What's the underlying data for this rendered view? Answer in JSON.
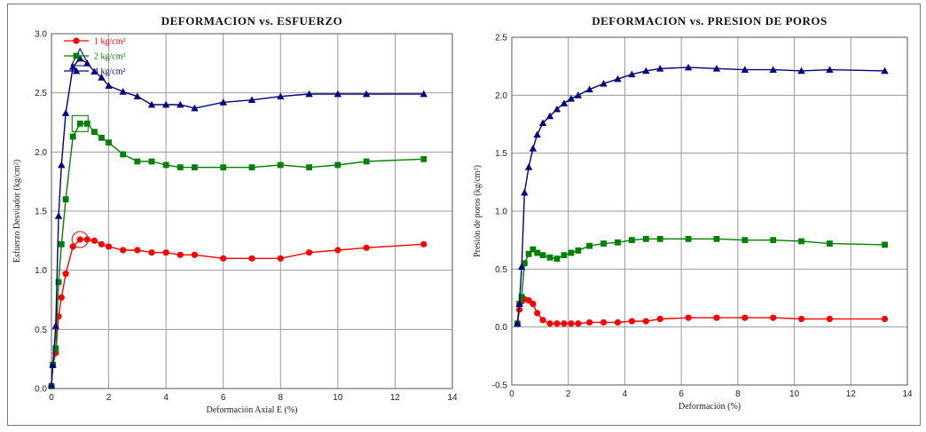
{
  "chart_data": [
    {
      "type": "line",
      "title": "DEFORMACION    vs.    ESFUERZO",
      "xlabel": "Deformación Axial E (%)",
      "ylabel": "Esfuerzo Desviador (kg/cm²)",
      "xlim": [
        0,
        14
      ],
      "ylim": [
        0,
        3.0
      ],
      "xticks": [
        0,
        2,
        4,
        6,
        8,
        10,
        12,
        14
      ],
      "xtick_labels": [
        "0",
        "2",
        "4",
        "6",
        "8",
        "10",
        "12",
        "14"
      ],
      "yticks": [
        0,
        0.5,
        1.0,
        1.5,
        2.0,
        2.5,
        3.0
      ],
      "ytick_labels": [
        "0.0",
        "0.5",
        "1.0",
        "1.5",
        "2.0",
        "2.5",
        "3.0"
      ],
      "grid": true,
      "legend_position": "top-left",
      "series": [
        {
          "name": "1 kg/cm²",
          "color": "#ff0000",
          "marker": "circle",
          "x": [
            0.0,
            0.05,
            0.15,
            0.25,
            0.35,
            0.5,
            0.75,
            1.0,
            1.25,
            1.5,
            1.75,
            2.0,
            2.5,
            3.0,
            3.5,
            4.0,
            4.5,
            5.0,
            6.0,
            7.0,
            8.0,
            9.0,
            10.0,
            11.0,
            13.0
          ],
          "y": [
            0.02,
            0.2,
            0.3,
            0.61,
            0.77,
            0.97,
            1.2,
            1.26,
            1.26,
            1.25,
            1.22,
            1.2,
            1.17,
            1.17,
            1.15,
            1.15,
            1.13,
            1.13,
            1.1,
            1.1,
            1.1,
            1.15,
            1.17,
            1.19,
            1.22
          ]
        },
        {
          "name": "2 kg/cm²",
          "color": "#008000",
          "marker": "square",
          "x": [
            0.0,
            0.05,
            0.15,
            0.25,
            0.35,
            0.5,
            0.75,
            1.0,
            1.25,
            1.5,
            1.75,
            2.0,
            2.5,
            3.0,
            3.5,
            4.0,
            4.5,
            5.0,
            6.0,
            7.0,
            8.0,
            9.0,
            10.0,
            11.0,
            13.0
          ],
          "y": [
            0.02,
            0.2,
            0.34,
            0.9,
            1.22,
            1.6,
            2.13,
            2.24,
            2.24,
            2.17,
            2.12,
            2.08,
            1.98,
            1.92,
            1.92,
            1.89,
            1.87,
            1.87,
            1.87,
            1.87,
            1.89,
            1.87,
            1.89,
            1.92,
            1.94
          ]
        },
        {
          "name": "4 kg/cm²",
          "color": "#000080",
          "marker": "triangle",
          "x": [
            0.0,
            0.05,
            0.15,
            0.25,
            0.35,
            0.5,
            0.75,
            1.0,
            1.25,
            1.5,
            1.75,
            2.0,
            2.5,
            3.0,
            3.5,
            4.0,
            4.5,
            5.0,
            6.0,
            7.0,
            8.0,
            9.0,
            10.0,
            11.0,
            13.0
          ],
          "y": [
            0.03,
            0.2,
            0.53,
            1.46,
            1.89,
            2.33,
            2.72,
            2.79,
            2.75,
            2.68,
            2.63,
            2.56,
            2.51,
            2.47,
            2.4,
            2.4,
            2.4,
            2.37,
            2.42,
            2.44,
            2.47,
            2.49,
            2.49,
            2.49,
            2.49
          ]
        }
      ],
      "highlights": [
        {
          "series": 0,
          "x": 1.0,
          "y": 1.26
        },
        {
          "series": 1,
          "x": 1.0,
          "y": 2.24
        },
        {
          "series": 2,
          "x": 1.0,
          "y": 2.79
        }
      ]
    },
    {
      "type": "line",
      "title": "DEFORMACION    vs.    PRESION DE POROS",
      "xlabel": "Deformación (%)",
      "ylabel": "Presión de poros (kg/cm²)",
      "xlim": [
        0,
        14
      ],
      "ylim": [
        -0.5,
        2.5
      ],
      "xticks": [
        0,
        2,
        4,
        6,
        8,
        10,
        12,
        14
      ],
      "xtick_labels": [
        "0",
        "2",
        "4",
        "6",
        "8",
        "10",
        "12",
        "14"
      ],
      "yticks": [
        -0.5,
        0.0,
        0.5,
        1.0,
        1.5,
        2.0,
        2.5
      ],
      "ytick_labels": [
        "-0.5",
        "0.0",
        "0.5",
        "1.0",
        "1.5",
        "2.0",
        "2.5"
      ],
      "grid": true,
      "series": [
        {
          "name": "1 kg/cm²",
          "color": "#ff0000",
          "marker": "circle",
          "x": [
            0.2,
            0.27,
            0.35,
            0.45,
            0.6,
            0.75,
            0.9,
            1.1,
            1.35,
            1.6,
            1.85,
            2.1,
            2.35,
            2.75,
            3.25,
            3.75,
            4.25,
            4.75,
            5.25,
            6.25,
            7.25,
            8.25,
            9.25,
            10.25,
            11.25,
            13.2
          ],
          "y": [
            0.03,
            0.15,
            0.22,
            0.24,
            0.23,
            0.2,
            0.12,
            0.06,
            0.03,
            0.03,
            0.03,
            0.03,
            0.03,
            0.04,
            0.04,
            0.04,
            0.05,
            0.05,
            0.07,
            0.08,
            0.08,
            0.08,
            0.08,
            0.07,
            0.07,
            0.07
          ]
        },
        {
          "name": "2 kg/cm²",
          "color": "#008000",
          "marker": "square",
          "x": [
            0.2,
            0.27,
            0.35,
            0.45,
            0.6,
            0.75,
            0.9,
            1.1,
            1.35,
            1.6,
            1.85,
            2.1,
            2.35,
            2.75,
            3.25,
            3.75,
            4.25,
            4.75,
            5.25,
            6.25,
            7.25,
            8.25,
            9.25,
            10.25,
            11.25,
            13.2
          ],
          "y": [
            0.03,
            0.2,
            0.26,
            0.55,
            0.63,
            0.67,
            0.64,
            0.62,
            0.6,
            0.59,
            0.62,
            0.64,
            0.66,
            0.7,
            0.72,
            0.73,
            0.75,
            0.76,
            0.76,
            0.76,
            0.76,
            0.75,
            0.75,
            0.74,
            0.72,
            0.71
          ]
        },
        {
          "name": "4 kg/cm²",
          "color": "#000080",
          "marker": "triangle",
          "x": [
            0.2,
            0.27,
            0.35,
            0.45,
            0.6,
            0.75,
            0.9,
            1.1,
            1.35,
            1.6,
            1.85,
            2.1,
            2.35,
            2.75,
            3.25,
            3.75,
            4.25,
            4.75,
            5.25,
            6.25,
            7.25,
            8.25,
            9.25,
            10.25,
            11.25,
            13.2
          ],
          "y": [
            0.03,
            0.2,
            0.52,
            1.16,
            1.38,
            1.54,
            1.66,
            1.76,
            1.82,
            1.88,
            1.93,
            1.97,
            2.0,
            2.05,
            2.1,
            2.14,
            2.18,
            2.21,
            2.23,
            2.24,
            2.23,
            2.22,
            2.22,
            2.21,
            2.22,
            2.21
          ]
        }
      ]
    }
  ]
}
